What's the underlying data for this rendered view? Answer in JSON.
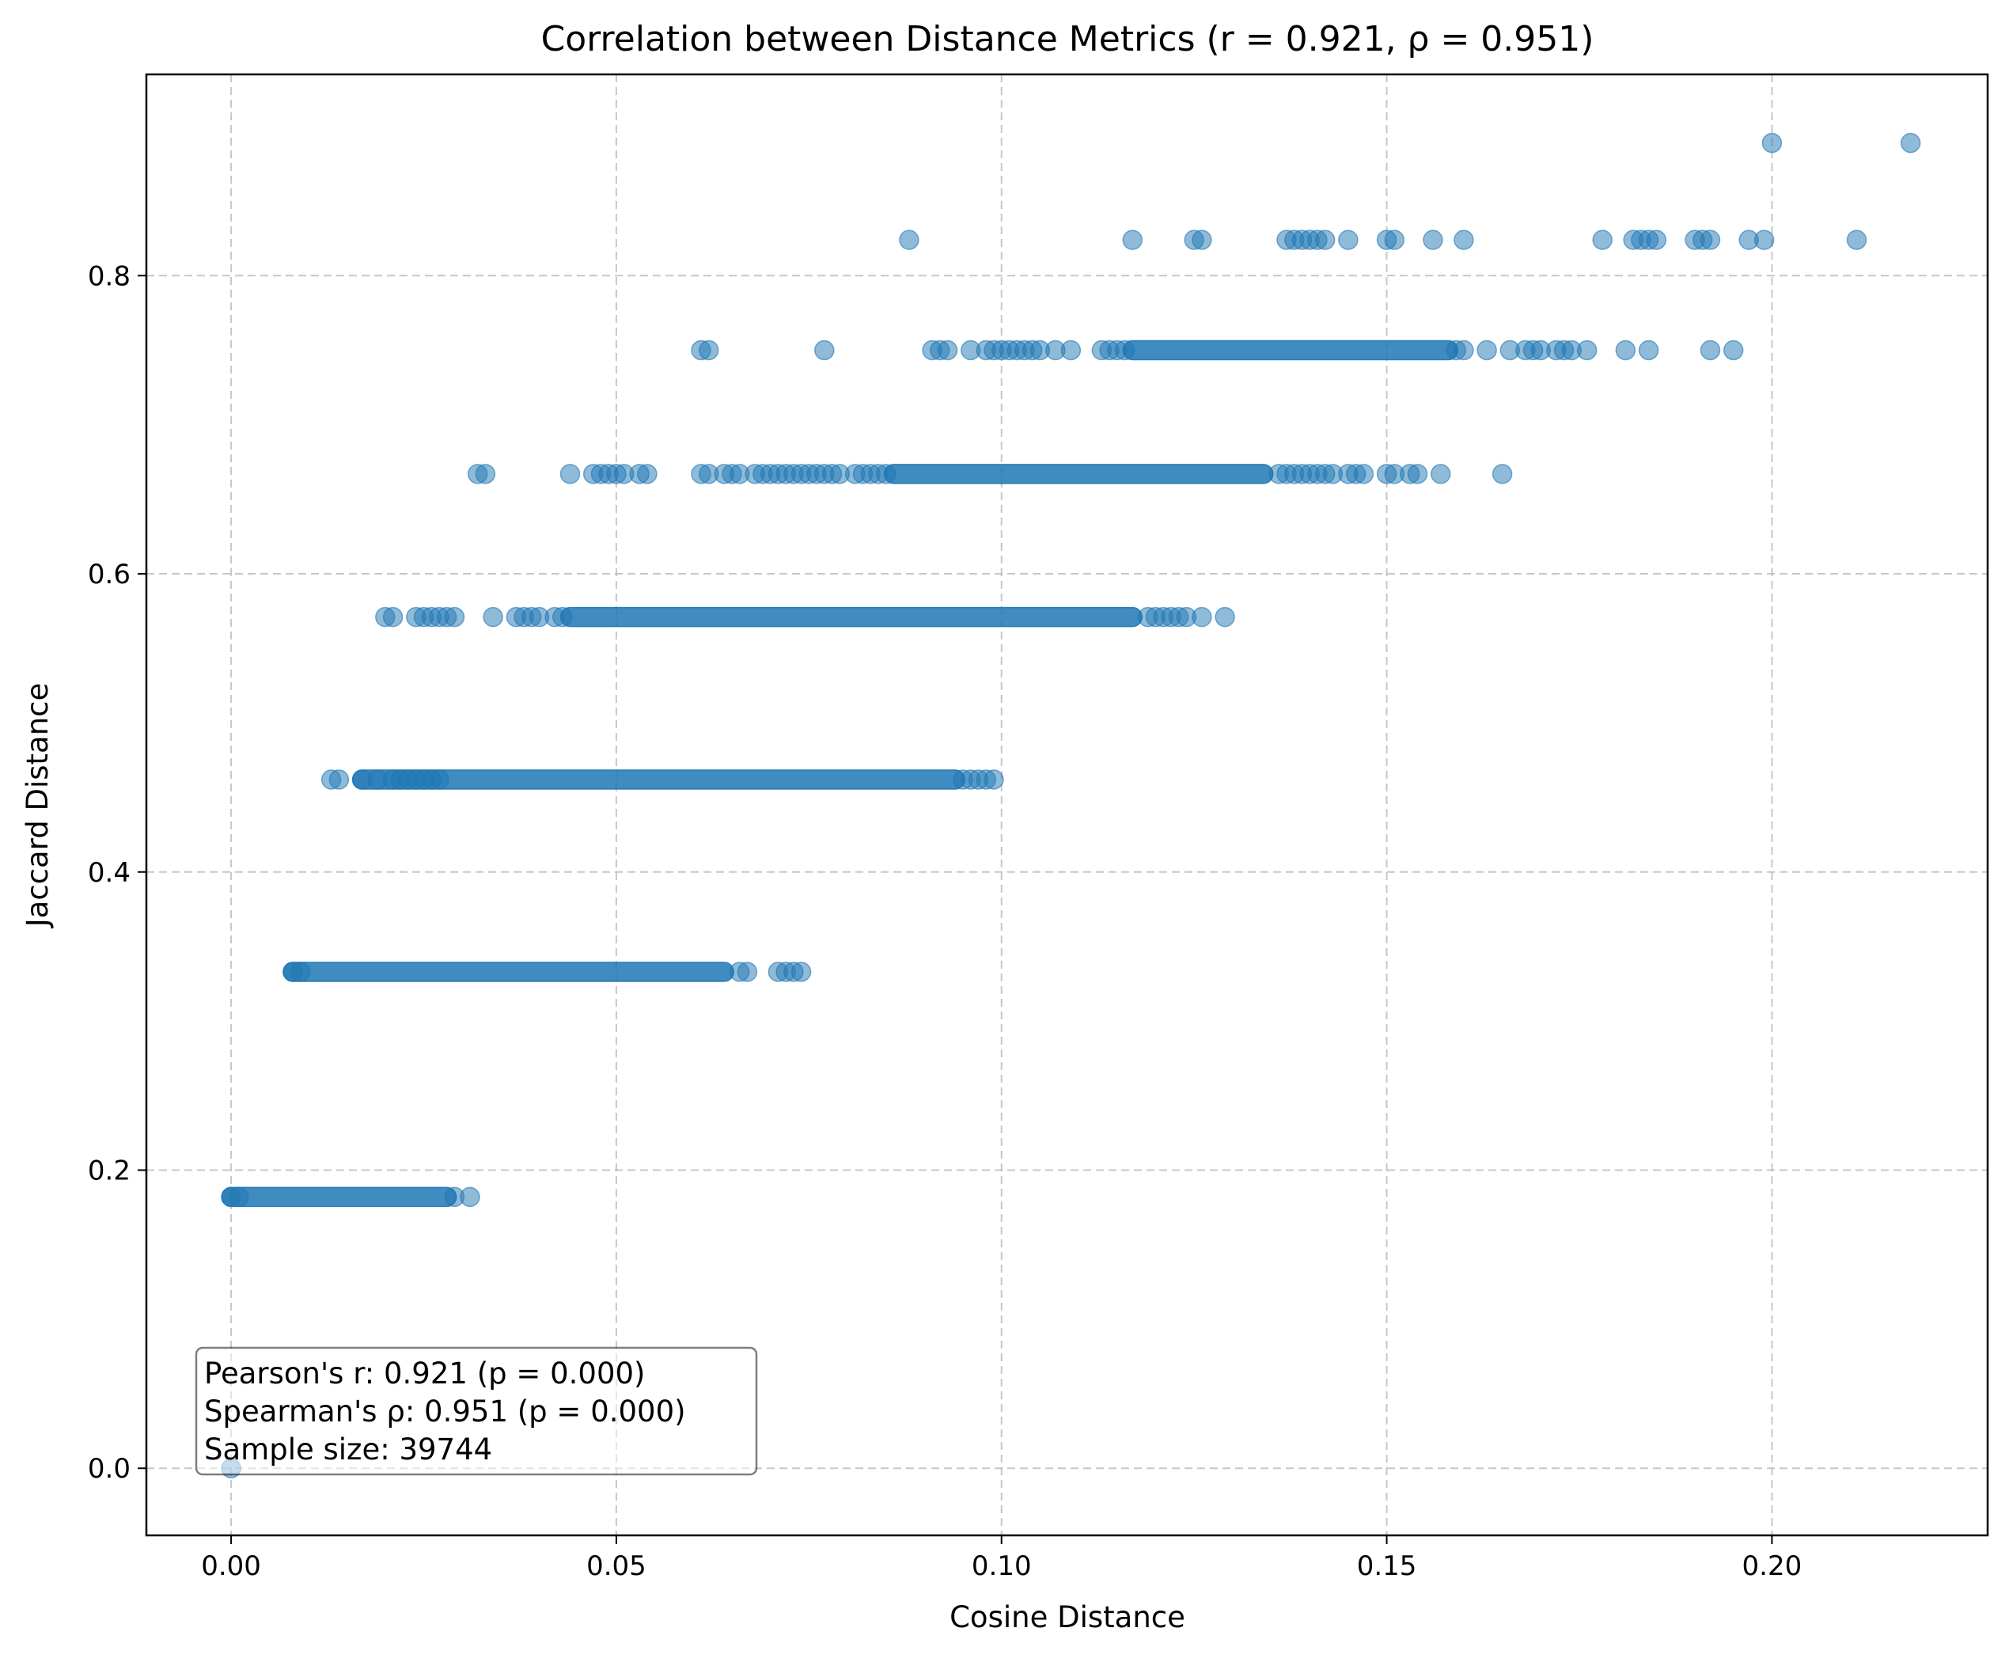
{
  "chart_data": {
    "type": "scatter",
    "title": "Correlation between Distance Metrics (r = 0.921, ρ = 0.951)",
    "xlabel": "Cosine Distance",
    "ylabel": "Jaccard Distance",
    "xlim": [
      -0.011,
      0.228
    ],
    "ylim": [
      -0.045,
      0.935
    ],
    "x_ticks": [
      0.0,
      0.05,
      0.1,
      0.15,
      0.2
    ],
    "x_tick_labels": [
      "0.00",
      "0.05",
      "0.10",
      "0.15",
      "0.20"
    ],
    "y_ticks": [
      0.0,
      0.2,
      0.4,
      0.6,
      0.8
    ],
    "y_tick_labels": [
      "0.0",
      "0.2",
      "0.4",
      "0.6",
      "0.8"
    ],
    "grid": true,
    "marker_color": "#1f77b4",
    "marker_alpha": 0.5,
    "annotation": [
      "Pearson's r: 0.921 (p = 0.000)",
      "Spearman's ρ: 0.951 (p = 0.000)",
      "Sample size: 39744"
    ],
    "bands": [
      {
        "y": 0.182,
        "dense_from": 0.0,
        "dense_to": 0.028,
        "x": [
          0.0,
          0.001,
          0.029,
          0.031
        ]
      },
      {
        "y": 0.333,
        "dense_from": 0.008,
        "dense_to": 0.064,
        "x": [
          0.008,
          0.009,
          0.066,
          0.067,
          0.071,
          0.072,
          0.073,
          0.074
        ]
      },
      {
        "y": 0.462,
        "dense_from": 0.017,
        "dense_to": 0.094,
        "x": [
          0.013,
          0.014,
          0.017,
          0.019,
          0.021,
          0.022,
          0.023,
          0.024,
          0.025,
          0.026,
          0.027,
          0.095,
          0.096,
          0.097,
          0.098,
          0.099
        ]
      },
      {
        "y": 0.571,
        "dense_from": 0.044,
        "dense_to": 0.117,
        "x": [
          0.02,
          0.021,
          0.024,
          0.025,
          0.026,
          0.027,
          0.028,
          0.029,
          0.034,
          0.037,
          0.038,
          0.039,
          0.04,
          0.042,
          0.043,
          0.119,
          0.12,
          0.121,
          0.122,
          0.123,
          0.124,
          0.126,
          0.129
        ]
      },
      {
        "y": 0.667,
        "dense_from": 0.086,
        "dense_to": 0.134,
        "x": [
          0.032,
          0.033,
          0.044,
          0.047,
          0.048,
          0.049,
          0.05,
          0.051,
          0.053,
          0.054,
          0.061,
          0.062,
          0.064,
          0.065,
          0.066,
          0.068,
          0.069,
          0.07,
          0.071,
          0.072,
          0.073,
          0.074,
          0.075,
          0.076,
          0.077,
          0.078,
          0.079,
          0.081,
          0.082,
          0.083,
          0.084,
          0.085,
          0.136,
          0.137,
          0.138,
          0.139,
          0.14,
          0.141,
          0.142,
          0.143,
          0.145,
          0.146,
          0.147,
          0.15,
          0.151,
          0.153,
          0.154,
          0.157,
          0.165
        ]
      },
      {
        "y": 0.75,
        "dense_from": 0.117,
        "dense_to": 0.158,
        "x": [
          0.061,
          0.062,
          0.077,
          0.091,
          0.092,
          0.093,
          0.096,
          0.098,
          0.099,
          0.1,
          0.101,
          0.102,
          0.103,
          0.104,
          0.105,
          0.107,
          0.109,
          0.113,
          0.114,
          0.115,
          0.116,
          0.159,
          0.16,
          0.163,
          0.166,
          0.168,
          0.169,
          0.17,
          0.172,
          0.173,
          0.174,
          0.176,
          0.181,
          0.184,
          0.192,
          0.195
        ]
      },
      {
        "y": 0.824,
        "dense_from": null,
        "dense_to": null,
        "x": [
          0.088,
          0.117,
          0.125,
          0.126,
          0.137,
          0.138,
          0.139,
          0.14,
          0.141,
          0.142,
          0.145,
          0.15,
          0.151,
          0.156,
          0.16,
          0.178,
          0.182,
          0.183,
          0.184,
          0.185,
          0.19,
          0.191,
          0.192,
          0.197,
          0.199,
          0.211
        ]
      },
      {
        "y": 0.889,
        "dense_from": null,
        "dense_to": null,
        "x": [
          0.2,
          0.218
        ]
      },
      {
        "y": 0.0,
        "dense_from": null,
        "dense_to": null,
        "x": [
          0.0
        ]
      }
    ]
  }
}
